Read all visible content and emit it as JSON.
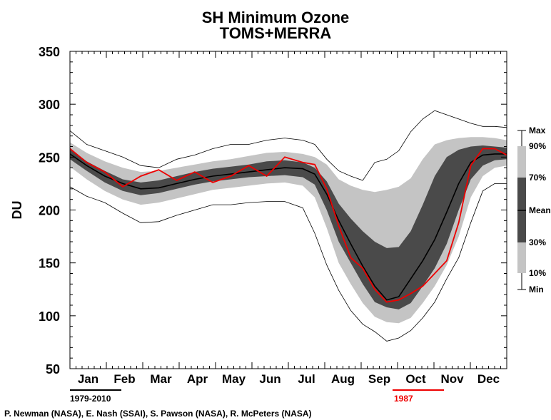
{
  "chart_data": {
    "type": "area",
    "title": "SH Minimum Ozone",
    "subtitle": "TOMS+MERRA",
    "ylabel": "DU",
    "ylim": [
      50,
      350
    ],
    "yticks": [
      50,
      100,
      150,
      200,
      250,
      300,
      350
    ],
    "months": [
      "Jan",
      "Feb",
      "Mar",
      "Apr",
      "May",
      "Jun",
      "Jul",
      "Aug",
      "Sep",
      "Oct",
      "Nov",
      "Dec"
    ],
    "grid": false,
    "legend_box": {
      "labels": [
        "Max",
        "90%",
        "70%",
        "Mean",
        "30%",
        "10%",
        "Min"
      ]
    },
    "climatology_label": "1979-2010",
    "highlight_year_label": "1987",
    "x_day": [
      1,
      15,
      30,
      45,
      60,
      75,
      90,
      105,
      120,
      135,
      150,
      165,
      180,
      195,
      205,
      215,
      225,
      235,
      245,
      255,
      265,
      275,
      285,
      295,
      305,
      315,
      325,
      335,
      345,
      355,
      365
    ],
    "series": [
      {
        "key": "max",
        "values": [
          275,
          262,
          256,
          250,
          242,
          240,
          248,
          252,
          258,
          262,
          262,
          266,
          268,
          266,
          262,
          248,
          237,
          232,
          228,
          245,
          248,
          256,
          274,
          286,
          294,
          290,
          286,
          282,
          279,
          279,
          278
        ]
      },
      {
        "key": "p90",
        "values": [
          264,
          254,
          246,
          240,
          236,
          237,
          240,
          243,
          246,
          248,
          251,
          254,
          255,
          253,
          250,
          243,
          229,
          223,
          219,
          217,
          219,
          222,
          230,
          248,
          262,
          266,
          268,
          269,
          269,
          268,
          266
        ]
      },
      {
        "key": "p70",
        "values": [
          258,
          246,
          237,
          229,
          226,
          228,
          232,
          236,
          239,
          241,
          243,
          246,
          247,
          245,
          240,
          227,
          206,
          192,
          180,
          170,
          164,
          165,
          180,
          205,
          232,
          250,
          257,
          260,
          261,
          260,
          259
        ]
      },
      {
        "key": "mean",
        "values": [
          253,
          242,
          232,
          225,
          220,
          221,
          225,
          229,
          232,
          234,
          236,
          238,
          240,
          239,
          234,
          215,
          190,
          168,
          147,
          128,
          115,
          118,
          135,
          152,
          172,
          198,
          225,
          245,
          252,
          253,
          253
        ]
      },
      {
        "key": "p30",
        "values": [
          248,
          237,
          226,
          218,
          214,
          216,
          220,
          224,
          227,
          229,
          231,
          232,
          233,
          231,
          224,
          200,
          170,
          150,
          130,
          113,
          108,
          106,
          112,
          128,
          145,
          168,
          200,
          229,
          242,
          247,
          248
        ]
      },
      {
        "key": "p10",
        "values": [
          241,
          229,
          218,
          210,
          205,
          207,
          211,
          215,
          219,
          221,
          223,
          225,
          226,
          223,
          212,
          183,
          150,
          130,
          112,
          99,
          94,
          93,
          98,
          112,
          128,
          148,
          175,
          212,
          232,
          240,
          242
        ]
      },
      {
        "key": "min",
        "values": [
          222,
          213,
          207,
          197,
          188,
          189,
          195,
          200,
          205,
          205,
          207,
          208,
          208,
          202,
          178,
          148,
          124,
          105,
          92,
          85,
          76,
          79,
          86,
          98,
          113,
          135,
          155,
          188,
          218,
          225,
          225
        ]
      },
      {
        "key": "y1987",
        "values": [
          258,
          245,
          236,
          222,
          232,
          238,
          228,
          236,
          226,
          232,
          242,
          232,
          250,
          245,
          243,
          220,
          185,
          155,
          145,
          125,
          113,
          115,
          121,
          128,
          140,
          152,
          188,
          242,
          258,
          258,
          252
        ]
      }
    ]
  },
  "footer": {
    "credits": "P. Newman (NASA), E. Nash (SSAI), S. Pawson (NASA), R. McPeters (NASA)"
  },
  "colors": {
    "band_outer": "#c4c4c4",
    "band_inner": "#4a4a4a",
    "mean": "#000000",
    "year": "#ee0000",
    "extreme": "#000000"
  }
}
